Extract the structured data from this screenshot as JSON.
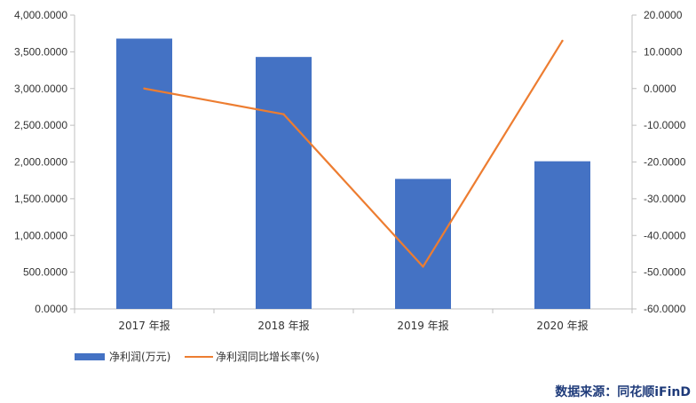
{
  "chart_data": {
    "type": "bar+line",
    "categories": [
      "2017 年报",
      "2018 年报",
      "2019 年报",
      "2020 年报"
    ],
    "series": [
      {
        "name": "净利润(万元)",
        "type": "bar",
        "axis": "left",
        "color": "#4472C4",
        "values": [
          3680,
          3430,
          1770,
          2010
        ]
      },
      {
        "name": "净利润同比增长率(%)",
        "type": "line",
        "axis": "right",
        "color": "#ED7D31",
        "values": [
          0.0,
          -7.0,
          -48.5,
          13.0
        ]
      }
    ],
    "left_axis": {
      "ylim": [
        0,
        4000
      ],
      "ticks": [
        "0.0000",
        "500.0000",
        "1,000.0000",
        "1,500.0000",
        "2,000.0000",
        "2,500.0000",
        "3,000.0000",
        "3,500.0000",
        "4,000.0000"
      ]
    },
    "right_axis": {
      "ylim": [
        -60,
        20
      ],
      "ticks": [
        "-60.0000",
        "-50.0000",
        "-40.0000",
        "-30.0000",
        "-20.0000",
        "-10.0000",
        "0.0000",
        "10.0000",
        "20.0000"
      ]
    },
    "legend_position": "bottom-left",
    "grid": false
  },
  "source_text": "数据来源：同花顺iFinD"
}
